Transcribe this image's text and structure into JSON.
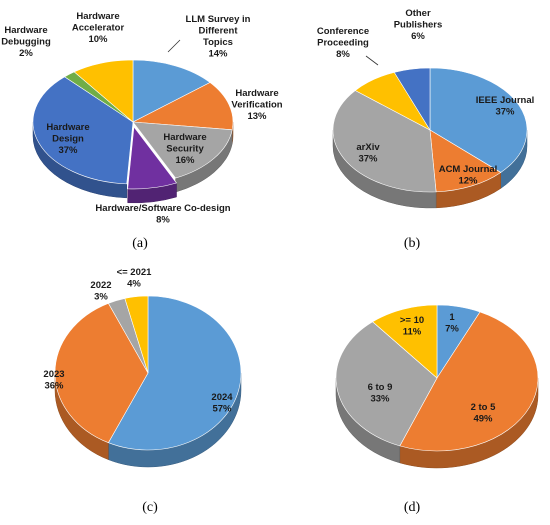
{
  "chart_data": [
    {
      "type": "pie",
      "caption": "(a)",
      "slices": [
        {
          "label": [
            "LLM Survey in",
            "Different",
            "Topics"
          ],
          "pct": "14%",
          "value": 14,
          "color": "#5b9bd5"
        },
        {
          "label": [
            "Hardware",
            "Verification"
          ],
          "pct": "13%",
          "value": 13,
          "color": "#ed7d31"
        },
        {
          "label": [
            "Hardware",
            "Security"
          ],
          "pct": "16%",
          "value": 16,
          "color": "#a5a5a5"
        },
        {
          "label": [
            "Hardware/Software Co-design"
          ],
          "pct": "8%",
          "value": 8,
          "color": "#7030a0"
        },
        {
          "label": [
            "Hardware",
            "Design"
          ],
          "pct": "37%",
          "value": 37,
          "color": "#4472c4"
        },
        {
          "label": [
            "Hardware",
            "Debugging"
          ],
          "pct": "2%",
          "value": 2,
          "color": "#70ad47"
        },
        {
          "label": [
            "Hardware",
            "Accelerator"
          ],
          "pct": "10%",
          "value": 10,
          "color": "#ffc000"
        }
      ]
    },
    {
      "type": "pie",
      "caption": "(b)",
      "slices": [
        {
          "label": [
            "IEEE Journal"
          ],
          "pct": "37%",
          "value": 37,
          "color": "#5b9bd5"
        },
        {
          "label": [
            "ACM Journal"
          ],
          "pct": "12%",
          "value": 12,
          "color": "#ed7d31"
        },
        {
          "label": [
            "arXiv"
          ],
          "pct": "37%",
          "value": 37,
          "color": "#a5a5a5"
        },
        {
          "label": [
            "Conference",
            "Proceeding"
          ],
          "pct": "8%",
          "value": 8,
          "color": "#ffc000"
        },
        {
          "label": [
            "Other",
            "Publishers"
          ],
          "pct": "6%",
          "value": 6,
          "color": "#4472c4"
        }
      ]
    },
    {
      "type": "pie",
      "caption": "(c)",
      "slices": [
        {
          "label": [
            "2024"
          ],
          "pct": "57%",
          "value": 57,
          "color": "#5b9bd5"
        },
        {
          "label": [
            "2023"
          ],
          "pct": "36%",
          "value": 36,
          "color": "#ed7d31"
        },
        {
          "label": [
            "2022"
          ],
          "pct": "3%",
          "value": 3,
          "color": "#a5a5a5"
        },
        {
          "label": [
            "<= 2021"
          ],
          "pct": "4%",
          "value": 4,
          "color": "#ffc000"
        }
      ]
    },
    {
      "type": "pie",
      "caption": "(d)",
      "slices": [
        {
          "label": [
            "1"
          ],
          "pct": "7%",
          "value": 7,
          "color": "#5b9bd5"
        },
        {
          "label": [
            "2 to 5"
          ],
          "pct": "49%",
          "value": 49,
          "color": "#ed7d31"
        },
        {
          "label": [
            "6 to 9"
          ],
          "pct": "33%",
          "value": 33,
          "color": "#a5a5a5"
        },
        {
          "label": [
            ">= 10"
          ],
          "pct": "11%",
          "value": 11,
          "color": "#ffc000"
        }
      ]
    }
  ]
}
